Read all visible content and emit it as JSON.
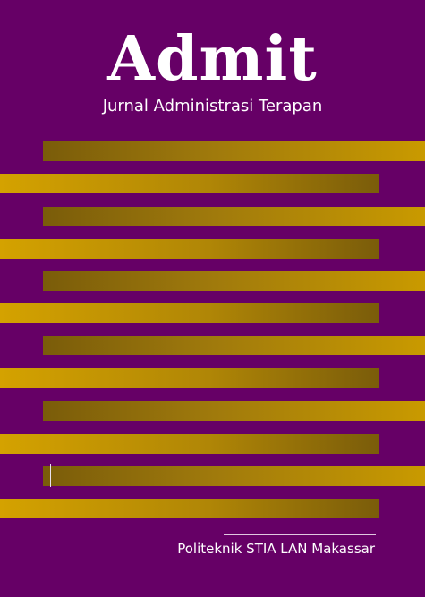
{
  "cover": {
    "title": "Admit",
    "subtitle": "Jurnal Administrasi Terapan",
    "publisher": "Politeknik STIA LAN Makassar",
    "colors": {
      "background": "#660066",
      "stripe_gold": "#d4a200",
      "stripe_dark": "#7a5c0a",
      "text": "#ffffff"
    }
  }
}
